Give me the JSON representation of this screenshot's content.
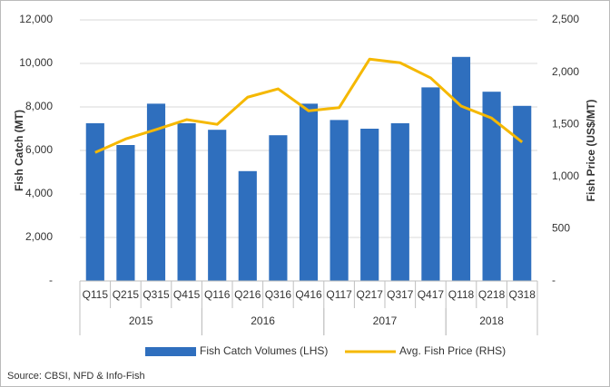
{
  "chart_data": {
    "type": "bar-line",
    "y_label": "Fish Catch (MT)",
    "y2_label": "Fish Price (US$/MT)",
    "categories": [
      "Q115",
      "Q215",
      "Q315",
      "Q415",
      "Q116",
      "Q216",
      "Q316",
      "Q416",
      "Q117",
      "Q217",
      "Q317",
      "Q417",
      "Q118",
      "Q218",
      "Q318"
    ],
    "groups": [
      {
        "name": "2015",
        "count": 4
      },
      {
        "name": "2016",
        "count": 4
      },
      {
        "name": "2017",
        "count": 4
      },
      {
        "name": "2018",
        "count": 3
      }
    ],
    "series": [
      {
        "name": "Fish Catch Volumes (LHS)",
        "type": "bar",
        "color": "#2f6fbe",
        "axis": "y",
        "values": [
          7250,
          6250,
          8150,
          7250,
          6950,
          5050,
          6700,
          8150,
          7400,
          7000,
          7250,
          8900,
          10300,
          8700,
          8050
        ]
      },
      {
        "name": "Avg. Fish Price (RHS)",
        "type": "line",
        "color": "#f5b800",
        "axis": "y2",
        "values": [
          1230,
          1360,
          1450,
          1545,
          1500,
          1760,
          1840,
          1630,
          1660,
          2125,
          2090,
          1945,
          1675,
          1560,
          1330
        ]
      }
    ],
    "ylim": [
      0,
      12000
    ],
    "yticks": [
      {
        "value": 0,
        "label": "-"
      },
      {
        "value": 2000,
        "label": "2,000"
      },
      {
        "value": 4000,
        "label": "4,000"
      },
      {
        "value": 6000,
        "label": "6,000"
      },
      {
        "value": 8000,
        "label": "8,000"
      },
      {
        "value": 10000,
        "label": "10,000"
      },
      {
        "value": 12000,
        "label": "12,000"
      }
    ],
    "y2lim": [
      0,
      2500
    ],
    "y2ticks": [
      {
        "value": 0,
        "label": "-"
      },
      500,
      {
        "value": 1000,
        "label": "1,000"
      },
      {
        "value": 1500,
        "label": "1,500"
      },
      {
        "value": 2000,
        "label": "2,000"
      },
      {
        "value": 2500,
        "label": "2,500"
      }
    ],
    "grid": true,
    "source": "Source:  CBSI, NFD & Info-Fish"
  }
}
